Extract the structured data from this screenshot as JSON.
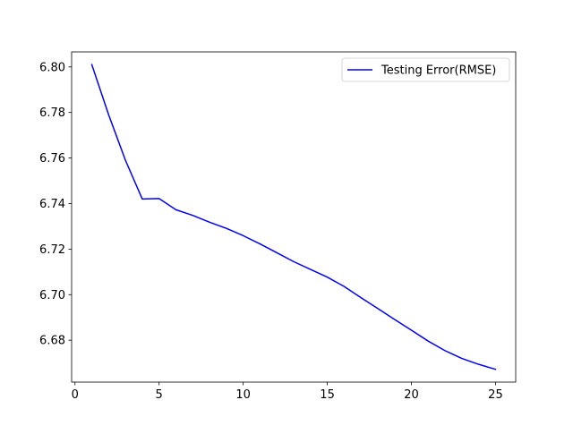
{
  "chart_data": {
    "type": "line",
    "title": "",
    "xlabel": "",
    "ylabel": "",
    "xlim": [
      -0.2,
      26.2
    ],
    "ylim": [
      6.6616,
      6.8066
    ],
    "xticks": [
      0,
      5,
      10,
      15,
      20,
      25
    ],
    "xtick_labels": [
      "0",
      "5",
      "10",
      "15",
      "20",
      "25"
    ],
    "yticks": [
      6.68,
      6.7,
      6.72,
      6.74,
      6.76,
      6.78,
      6.8
    ],
    "ytick_labels": [
      "6.68",
      "6.70",
      "6.72",
      "6.74",
      "6.76",
      "6.78",
      "6.80"
    ],
    "grid": false,
    "legend_position": "top-right",
    "series": [
      {
        "name": "Testing Error(RMSE)",
        "color": "#0000ff",
        "x": [
          1,
          2,
          3,
          4,
          5,
          6,
          7,
          8,
          9,
          10,
          11,
          12,
          13,
          14,
          15,
          16,
          17,
          18,
          19,
          20,
          21,
          22,
          23,
          24,
          25
        ],
        "y": [
          6.801,
          6.779,
          6.759,
          6.742,
          6.7422,
          6.7373,
          6.7348,
          6.7318,
          6.7291,
          6.7259,
          6.7223,
          6.7184,
          6.7145,
          6.7111,
          6.7077,
          6.7036,
          6.6987,
          6.6939,
          6.6891,
          6.6844,
          6.6796,
          6.6754,
          6.672,
          6.6694,
          6.6672
        ]
      }
    ]
  }
}
